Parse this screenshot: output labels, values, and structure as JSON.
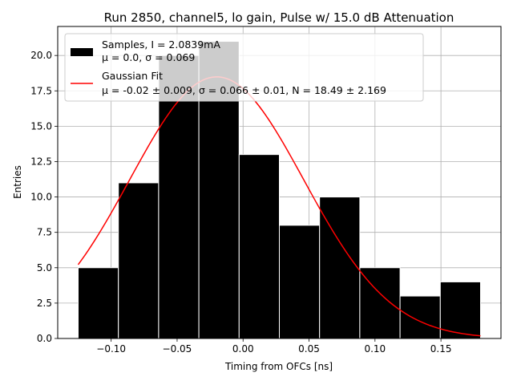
{
  "chart_data": {
    "type": "bar",
    "title": "Run 2850, channel5, lo gain, Pulse w/ 15.0 dB Attenuation",
    "xlabel": "Timing from OFCs [ns]",
    "ylabel": "Entries",
    "xlim": [
      -0.1405,
      0.1955
    ],
    "ylim": [
      0,
      22.05
    ],
    "grid": true,
    "xticks": [
      -0.1,
      -0.05,
      0.0,
      0.05,
      0.1,
      0.15
    ],
    "xtick_labels": [
      "−0.10",
      "−0.05",
      "0.00",
      "0.05",
      "0.10",
      "0.15"
    ],
    "yticks": [
      0,
      2.5,
      5,
      7.5,
      10,
      12.5,
      15,
      17.5,
      20
    ],
    "ytick_labels": [
      "0.0",
      "2.5",
      "5.0",
      "7.5",
      "10.0",
      "12.5",
      "15.0",
      "17.5",
      "20.0"
    ],
    "bin_edges": [
      -0.125,
      -0.0945,
      -0.064,
      -0.0335,
      -0.003,
      0.0275,
      0.058,
      0.0885,
      0.119,
      0.1495,
      0.18
    ],
    "values": [
      5,
      11,
      20,
      21,
      13,
      8,
      10,
      5,
      3,
      4
    ],
    "series": [
      {
        "name": "Samples",
        "type": "histogram",
        "color": "#000000",
        "legend_lines": [
          "Samples, I = 2.0839mA",
          "μ = 0.0, σ = 0.069"
        ]
      },
      {
        "name": "Gaussian Fit",
        "type": "line",
        "color": "#ff0000",
        "mu": -0.02,
        "sigma": 0.066,
        "N": 18.49,
        "x_range": [
          -0.125,
          0.18
        ],
        "legend_lines": [
          "Gaussian Fit",
          "μ = -0.02 ± 0.009, σ = 0.066 ± 0.01, N = 18.49 ± 2.169"
        ]
      }
    ],
    "legend_position": "top-left"
  }
}
